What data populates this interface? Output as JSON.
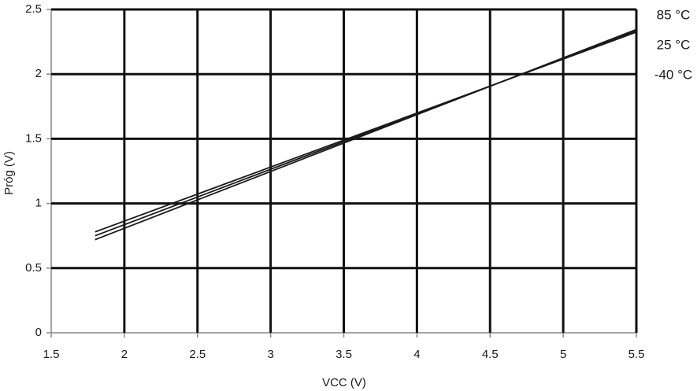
{
  "chart_data": {
    "type": "line",
    "xlabel": "VCC (V)",
    "ylabel": "Próg (V)",
    "x": [
      1.8,
      5.5
    ],
    "series": [
      {
        "name": "85 °C",
        "color": "#1a1a1a",
        "values": [
          0.72,
          2.345
        ]
      },
      {
        "name": "25 °C",
        "color": "#1a1a1a",
        "values": [
          0.75,
          2.335
        ]
      },
      {
        "name": "-40 °C",
        "color": "#1a1a1a",
        "values": [
          0.78,
          2.325
        ]
      }
    ],
    "xlim": [
      1.5,
      5.5
    ],
    "xticks": [
      1.5,
      2,
      2.5,
      3,
      3.5,
      4,
      4.5,
      5,
      5.5
    ],
    "ylim": [
      0,
      2.5
    ],
    "yticks": [
      0,
      0.5,
      1,
      1.5,
      2,
      2.5
    ],
    "grid": true
  }
}
